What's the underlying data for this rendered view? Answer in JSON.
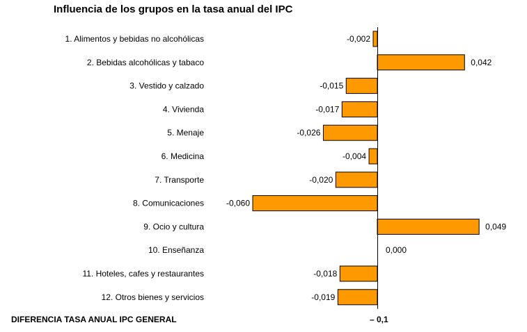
{
  "title": "Influencia de los grupos en la tasa anual del IPC",
  "footer": {
    "label": "DIFERENCIA TASA ANUAL IPC GENERAL",
    "value": "– 0,1"
  },
  "colors": {
    "bar_fill": "#ff9900",
    "bar_stroke": "#000000",
    "axis": "#000000"
  },
  "chart_data": {
    "type": "bar",
    "orientation": "horizontal",
    "title": "Influencia de los grupos en la tasa anual del IPC",
    "categories": [
      "1. Alimentos y bebidas no alcohólicas",
      "2. Bebidas alcohólicas y tabaco",
      "3. Vestido y calzado",
      "4. Vivienda",
      "5. Menaje",
      "6. Medicina",
      "7. Transporte",
      "8. Comunicaciones",
      "9. Ocio y cultura",
      "10. Enseñanza",
      "11. Hoteles, cafes y restaurantes",
      "12. Otros bienes y servicios"
    ],
    "values": [
      -0.002,
      0.042,
      -0.015,
      -0.017,
      -0.026,
      -0.004,
      -0.02,
      -0.06,
      0.049,
      0.0,
      -0.018,
      -0.019
    ],
    "value_labels": [
      "-0,002",
      "0,042",
      "-0,015",
      "-0,017",
      "-0,026",
      "-0,004",
      "-0,020",
      "-0,060",
      "0,049",
      "0,000",
      "-0,018",
      "-0,019"
    ],
    "xlim": [
      -0.06,
      0.049
    ],
    "grid": false,
    "legend": "none"
  }
}
